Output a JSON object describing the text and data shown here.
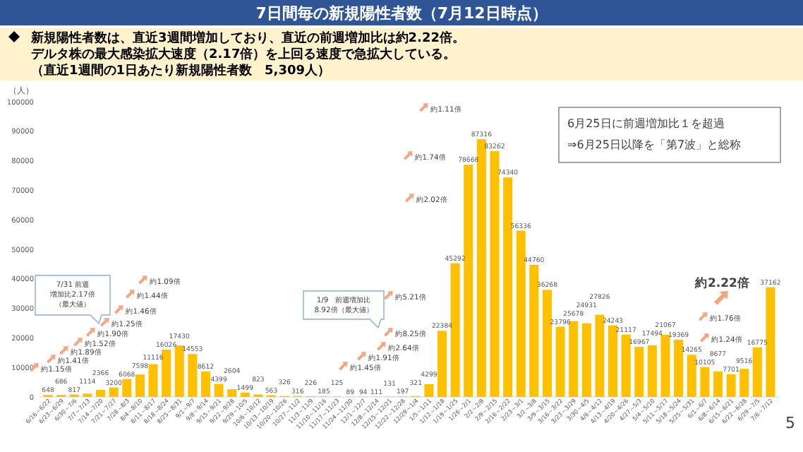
{
  "chart_data": {
    "type": "bar",
    "title": "7日間毎の新規陽性者数（7月12日時点）",
    "subtitle": "新規陽性者数は、直近3週間増加しており、直近の前週増加比は約2.22倍。デルタ株の最大感染拡大速度（2.17倍）を上回る速度で急拡大している。（直近1週間の1日あたり新規陽性者数　5,309人）",
    "ylabel": "（人）",
    "categories": [
      "6/16～6/22",
      "6/23～6/29",
      "6/30～7/6",
      "7/7～7/13",
      "7/14～7/20",
      "7/21～7/27",
      "7/28～8/3",
      "8/4～8/10",
      "8/11～8/17",
      "8/18～8/24",
      "8/25～8/31",
      "9/1～9/7",
      "9/8～9/14",
      "9/15～9/21",
      "9/22～9/28",
      "9/29～10/5",
      "10/6～10/12",
      "10/13～10/19",
      "10/20～10/26",
      "10/27～11/2",
      "11/3～11/9",
      "11/10～11/16",
      "11/17～11/23",
      "11/24～11/30",
      "12/1～12/7",
      "12/8～12/14",
      "12/15～12/21",
      "12/22～12/28",
      "12/29～1/4",
      "1/5～1/11",
      "1/12～1/18",
      "1/19～1/25",
      "1/26～2/1",
      "2/2～2/8",
      "2/9～2/15",
      "2/16～2/22",
      "2/23～3/1",
      "3/2～3/8",
      "3/9～3/15",
      "3/16～3/22",
      "3/23～3/29",
      "3/30～4/5",
      "4/6～4/12",
      "4/13～4/19",
      "4/20～4/26",
      "4/27～5/3",
      "5/4～5/10",
      "5/11～5/17",
      "5/18～5/24",
      "5/25～5/31",
      "6/1～6/7",
      "6/8～6/14",
      "6/15～6/21",
      "6/22～6/28",
      "6/29～7/5",
      "7/6～7/12"
    ],
    "values": [
      648,
      686,
      817,
      1114,
      2366,
      3200,
      6068,
      7598,
      11116,
      16026,
      17430,
      14553,
      8612,
      4399,
      2604,
      1499,
      823,
      563,
      326,
      316,
      226,
      185,
      125,
      89,
      94,
      111,
      131,
      197,
      321,
      4299,
      22384,
      45292,
      78668,
      87316,
      83262,
      74340,
      56336,
      44760,
      36268,
      23796,
      25678,
      24931,
      27826,
      24243,
      21117,
      16967,
      17494,
      21067,
      19369,
      14265,
      10105,
      8677,
      7701,
      9516,
      16775,
      37162
    ],
    "color": "#ffc000",
    "data_labels": true,
    "ylim": [
      0,
      100000
    ],
    "yticks": [
      0,
      10000,
      20000,
      30000,
      40000,
      50000,
      60000,
      70000,
      80000,
      90000,
      100000
    ],
    "annotations": [
      "約1.15倍",
      "約1.41倍",
      "約1.89倍",
      "約1.52倍",
      "約1.90倍",
      "約1.25倍",
      "約1.46倍",
      "約1.44倍",
      "約1.09倍",
      "7/31 前週増加比2.17倍（最大値）",
      "約1.45倍",
      "約1.91倍",
      "約2.64倍",
      "約8.25倍",
      "約5.21倍",
      "約2.02倍",
      "約1.74倍",
      "約1.11倍",
      "1/9　前週増加比8.92倍（最大値）",
      "約1.24倍",
      "約1.76倍",
      "約2.22倍",
      "6月25日に前週増加比１を超過",
      "⇒6月25日以降を「第7波」と総称",
      "5"
    ]
  }
}
